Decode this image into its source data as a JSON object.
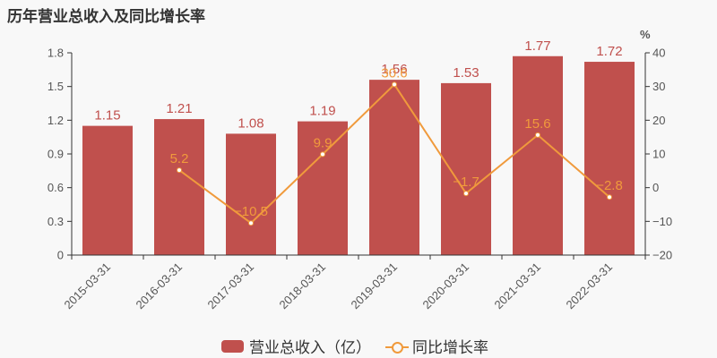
{
  "title": "历年营业总收入及同比增长率",
  "chart_data": {
    "type": "bar+line",
    "title": "历年营业总收入及同比增长率",
    "categories": [
      "2015-03-31",
      "2016-03-31",
      "2017-03-31",
      "2018-03-31",
      "2019-03-31",
      "2020-03-31",
      "2021-03-31",
      "2022-03-31"
    ],
    "series": [
      {
        "name": "营业总收入（亿）",
        "type": "bar",
        "axis": "left",
        "color": "#c0504d",
        "values": [
          1.15,
          1.21,
          1.08,
          1.19,
          1.56,
          1.53,
          1.77,
          1.72
        ]
      },
      {
        "name": "同比增长率",
        "type": "line",
        "axis": "right",
        "color": "#f09a3c",
        "values": [
          null,
          5.2,
          -10.5,
          9.9,
          30.6,
          -1.7,
          15.6,
          -2.8
        ]
      }
    ],
    "left_axis": {
      "ylim": [
        0,
        1.8
      ],
      "ticks": [
        "0",
        "0.3",
        "0.6",
        "0.9",
        "1.2",
        "1.5",
        "1.8"
      ]
    },
    "right_axis": {
      "label": "%",
      "ylim": [
        -20,
        40
      ],
      "ticks": [
        "−20",
        "−10",
        "0",
        "10",
        "20",
        "30",
        "40"
      ]
    },
    "grid": false,
    "legend_position": "bottom"
  },
  "legend": {
    "bar_label": "营业总收入（亿）",
    "line_label": "同比增长率"
  },
  "right_unit": "%"
}
